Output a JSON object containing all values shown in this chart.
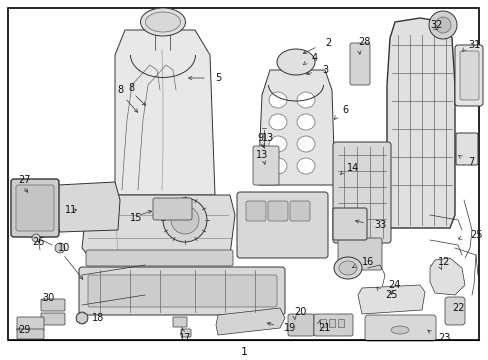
{
  "background_color": "#ffffff",
  "border_color": "#000000",
  "border_linewidth": 1.2,
  "figure_width": 4.89,
  "figure_height": 3.6,
  "dpi": 100,
  "text_color": "#111111",
  "font_size": 7.0,
  "label_font_size": 8.5,
  "diagram_color": "#222222",
  "diagram_image_b64": ""
}
